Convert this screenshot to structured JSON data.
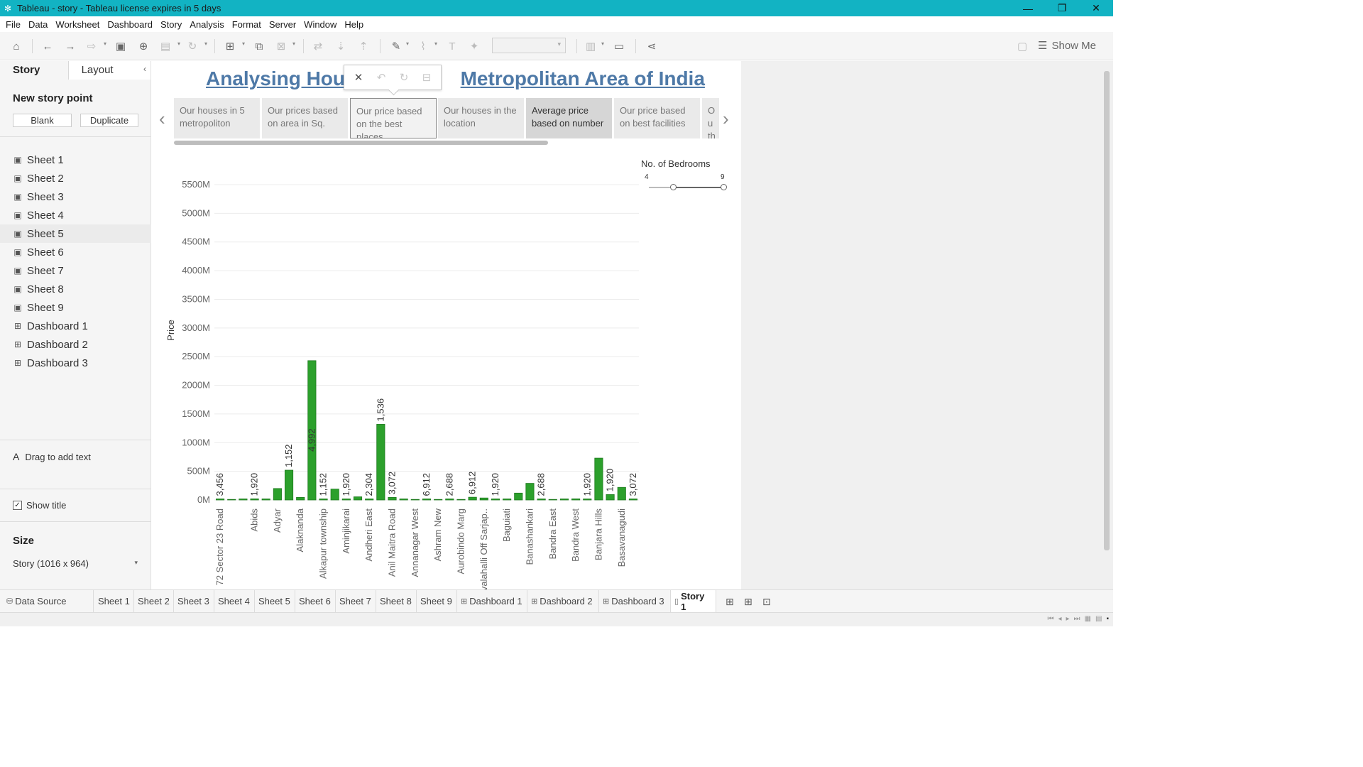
{
  "window": {
    "title": "Tableau - story - Tableau license expires in 5 days",
    "minimize": "—",
    "restore": "❐",
    "close": "✕"
  },
  "menu": [
    "File",
    "Data",
    "Worksheet",
    "Dashboard",
    "Story",
    "Analysis",
    "Format",
    "Server",
    "Window",
    "Help"
  ],
  "toolbar": {
    "show_me": "Show Me"
  },
  "left_panel": {
    "tab_story": "Story",
    "tab_layout": "Layout",
    "new_story_point": "New story point",
    "blank_button": "Blank",
    "duplicate_button": "Duplicate",
    "sheets": [
      {
        "label": "Sheet 1",
        "icon": "sheet-icon"
      },
      {
        "label": "Sheet 2",
        "icon": "sheet-icon"
      },
      {
        "label": "Sheet 3",
        "icon": "sheet-icon"
      },
      {
        "label": "Sheet 4",
        "icon": "sheet-icon"
      },
      {
        "label": "Sheet 5",
        "icon": "sheet-icon"
      },
      {
        "label": "Sheet 6",
        "icon": "sheet-icon"
      },
      {
        "label": "Sheet 7",
        "icon": "sheet-icon"
      },
      {
        "label": "Sheet 8",
        "icon": "sheet-icon"
      },
      {
        "label": "Sheet 9",
        "icon": "sheet-icon"
      },
      {
        "label": "Dashboard 1",
        "icon": "dashboard-icon"
      },
      {
        "label": "Dashboard 2",
        "icon": "dashboard-icon"
      },
      {
        "label": "Dashboard 3",
        "icon": "dashboard-icon"
      }
    ],
    "drag_text": "Drag to add text",
    "drag_icon": "A",
    "show_title": "Show title",
    "show_title_checked": true,
    "size_label": "Size",
    "size_value": "Story (1016 x 964)"
  },
  "story": {
    "title_left": "Analysing Hous",
    "title_right": "Metropolitan Area of India",
    "story_points": [
      {
        "label": "Our houses in 5 metropoliton",
        "state": "normal"
      },
      {
        "label": "Our prices based on area in Sq.",
        "state": "normal"
      },
      {
        "label": "Our price based on the best places",
        "state": "selected"
      },
      {
        "label": "Our houses in the location",
        "state": "normal"
      },
      {
        "label": "Average price based on number",
        "state": "current"
      },
      {
        "label": "Our price based on best facilities",
        "state": "normal"
      },
      {
        "label": "Ou th",
        "state": "normal"
      }
    ]
  },
  "legend": {
    "title": "No. of Bedrooms",
    "min": "4",
    "max": "9"
  },
  "chart_data": {
    "type": "bar",
    "ylabel": "Price",
    "xlabel": "",
    "y_unit": "M",
    "ylim": [
      0,
      5500
    ],
    "y_ticks": [
      "0M",
      "500M",
      "1000M",
      "1500M",
      "2000M",
      "2500M",
      "3000M",
      "3500M",
      "4000M",
      "4500M",
      "5000M",
      "5500M"
    ],
    "bar_color": "#2ca02c",
    "bar_color_dark": "#1f7a1f",
    "bars": [
      {
        "category": "72 Sector 23 Road",
        "value": 8,
        "label": "3,456"
      },
      {
        "category": "",
        "value": 0,
        "label": ""
      },
      {
        "category": "",
        "value": 10,
        "label": ""
      },
      {
        "category": "Abids",
        "value": 20,
        "label": "1,920"
      },
      {
        "category": "",
        "value": 10,
        "label": ""
      },
      {
        "category": "Adyar",
        "value": 200,
        "label": ""
      },
      {
        "category": "",
        "value": 520,
        "label": "1,152"
      },
      {
        "category": "Alaknanda",
        "value": 45,
        "label": ""
      },
      {
        "category": "",
        "value": 2430,
        "label": "4,992"
      },
      {
        "category": "Alkapur township",
        "value": 10,
        "label": "1,152"
      },
      {
        "category": "",
        "value": 190,
        "label": ""
      },
      {
        "category": "Aminjikarai",
        "value": 15,
        "label": "1,920"
      },
      {
        "category": "",
        "value": 55,
        "label": ""
      },
      {
        "category": "Andheri East",
        "value": 10,
        "label": "2,304"
      },
      {
        "category": "",
        "value": 1320,
        "label": "1,536"
      },
      {
        "category": "Anil Maitra Road",
        "value": 45,
        "label": "3,072"
      },
      {
        "category": "",
        "value": 10,
        "label": ""
      },
      {
        "category": "Annanagar West",
        "value": 0,
        "label": ""
      },
      {
        "category": "",
        "value": 12,
        "label": "6,912"
      },
      {
        "category": "Ashram New",
        "value": 0,
        "label": ""
      },
      {
        "category": "",
        "value": 12,
        "label": "2,688"
      },
      {
        "category": "Aurobindo Marg",
        "value": 0,
        "label": ""
      },
      {
        "category": "",
        "value": 48,
        "label": "6,912"
      },
      {
        "category": "valahalli Off Sarjap..",
        "value": 35,
        "label": ""
      },
      {
        "category": "",
        "value": 15,
        "label": "1,920"
      },
      {
        "category": "Baguiati",
        "value": 5,
        "label": ""
      },
      {
        "category": "",
        "value": 120,
        "label": ""
      },
      {
        "category": "Banashankari",
        "value": 290,
        "label": ""
      },
      {
        "category": "",
        "value": 12,
        "label": "2,688"
      },
      {
        "category": "Bandra East",
        "value": 0,
        "label": ""
      },
      {
        "category": "",
        "value": 10,
        "label": ""
      },
      {
        "category": "Bandra West",
        "value": 20,
        "label": ""
      },
      {
        "category": "",
        "value": 5,
        "label": "1,920"
      },
      {
        "category": "Banjara Hills",
        "value": 730,
        "label": ""
      },
      {
        "category": "",
        "value": 95,
        "label": "1,920"
      },
      {
        "category": "Basavanagudi",
        "value": 220,
        "label": ""
      },
      {
        "category": "",
        "value": 15,
        "label": "3,072"
      }
    ]
  },
  "bottom_tabs": [
    {
      "label": "Data Source",
      "icon": "database-icon",
      "active": false
    },
    {
      "label": "Sheet 1",
      "icon": "",
      "active": false
    },
    {
      "label": "Sheet 2",
      "icon": "",
      "active": false
    },
    {
      "label": "Sheet 3",
      "icon": "",
      "active": false
    },
    {
      "label": "Sheet 4",
      "icon": "",
      "active": false
    },
    {
      "label": "Sheet 5",
      "icon": "",
      "active": false
    },
    {
      "label": "Sheet 6",
      "icon": "",
      "active": false
    },
    {
      "label": "Sheet 7",
      "icon": "",
      "active": false
    },
    {
      "label": "Sheet 8",
      "icon": "",
      "active": false
    },
    {
      "label": "Sheet 9",
      "icon": "",
      "active": false
    },
    {
      "label": "Dashboard 1",
      "icon": "dashboard-icon",
      "active": false
    },
    {
      "label": "Dashboard 2",
      "icon": "dashboard-icon",
      "active": false
    },
    {
      "label": "Dashboard 3",
      "icon": "dashboard-icon",
      "active": false
    },
    {
      "label": "Story 1",
      "icon": "story-icon",
      "active": true
    }
  ]
}
